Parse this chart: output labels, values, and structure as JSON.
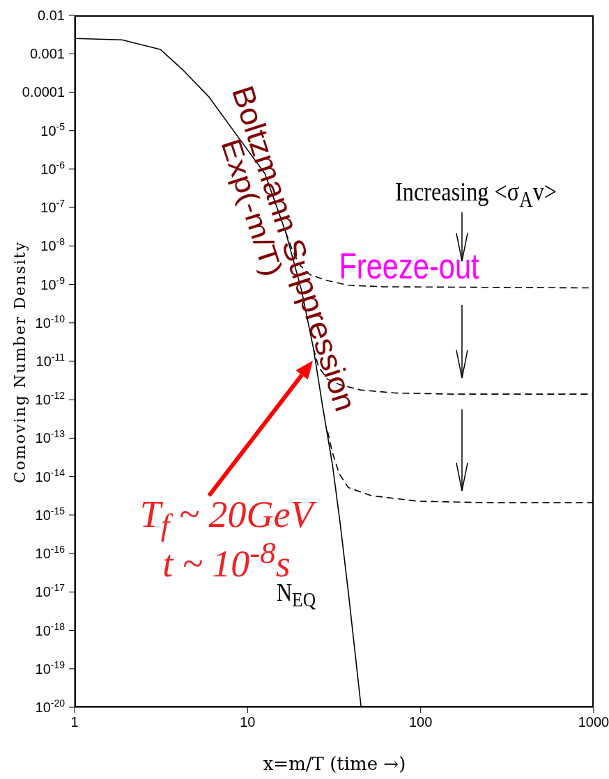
{
  "chart_data": {
    "type": "line",
    "xlabel": "x=m/T (time →)",
    "ylabel": "Comoving Number Density",
    "log": "xy",
    "xlim": [
      1,
      1000
    ],
    "xticks": [
      1,
      10,
      100,
      1000
    ],
    "ylim": [
      1e-20,
      0.01
    ],
    "yticks": [
      0.01,
      0.001,
      0.0001,
      {
        "value": 1e-05,
        "label": "10$^{-5}$"
      },
      {
        "value": 1e-06,
        "label": "10$^{-6}$"
      },
      {
        "value": 1e-07,
        "label": "10$^{-7}$"
      },
      {
        "value": 1e-08,
        "label": "10$^{-8}$"
      },
      {
        "value": 1e-09,
        "label": "10$^{-9}$"
      },
      {
        "value": 1e-10,
        "label": "10$^{-10}$"
      },
      {
        "value": 1e-11,
        "label": "10$^{-11}$"
      },
      {
        "value": 1e-12,
        "label": "10$^{-12}$"
      },
      {
        "value": 1e-13,
        "label": "10$^{-13}$"
      },
      {
        "value": 1e-14,
        "label": "10$^{-14}$"
      },
      {
        "value": 1e-15,
        "label": "10$^{-15}$"
      },
      {
        "value": 1e-16,
        "label": "10$^{-16}$"
      },
      {
        "value": 1e-17,
        "label": "10$^{-17}$"
      },
      {
        "value": 1e-18,
        "label": "10$^{-18}$"
      },
      {
        "value": 1e-19,
        "label": "10$^{-19}$"
      },
      {
        "value": 1e-20,
        "label": "10$^{-20}$"
      }
    ],
    "series": [
      {
        "name": "N$_{EQ}$",
        "color": "#000000",
        "line_style": "solid",
        "x": [
          1,
          1.88,
          3.13,
          4.2,
          6.0,
          8.7,
          12.6,
          16.6,
          20.5,
          24.0,
          27.1,
          30.9,
          34.2,
          38.2,
          45.3
        ],
        "values": [
          0.0025,
          0.0023,
          0.0013,
          0.00039,
          7.4e-05,
          7.4e-06,
          7.6e-07,
          2.3e-08,
          7e-10,
          2.2e-11,
          7e-13,
          2.1e-14,
          6.6e-16,
          1e-17,
          1e-20
        ]
      },
      {
        "color": "#000000",
        "line_style": "dashed",
        "x": [
          16.6,
          18.2,
          19.9,
          22.9,
          28.1,
          38.2,
          60.6,
          153,
          1000
        ],
        "values": [
          2.3e-08,
          7.6e-09,
          3.3e-09,
          1.8e-09,
          1.3e-09,
          9.5e-10,
          8.7e-10,
          8.5e-10,
          8.1e-10
        ]
      },
      {
        "color": "#000000",
        "line_style": "dashed",
        "x": [
          24,
          25.7,
          29,
          33.8,
          44.8,
          71,
          153,
          1000
        ],
        "values": [
          2.2e-11,
          7.2e-12,
          3.4e-12,
          2.5e-12,
          1.8e-12,
          1.5e-12,
          1.4e-12,
          1.4e-12
        ]
      },
      {
        "color": "#000000",
        "line_style": "dashed",
        "x": [
          29,
          30.9,
          33.8,
          38.2,
          52,
          96,
          245,
          1000
        ],
        "values": [
          1.5e-13,
          4.3e-14,
          1.2e-14,
          5.2e-15,
          3.2e-15,
          2.3e-15,
          2.1e-15,
          2.1e-15
        ]
      }
    ],
    "annotations": [
      "Boltzmann Suppression",
      "Exp(-m/T)",
      "Freeze-out",
      "Increasing <σ$_{A}$v>",
      "T$_{f}$ ~ 20GeV",
      "t ~ 10$^{-8}$s"
    ]
  }
}
